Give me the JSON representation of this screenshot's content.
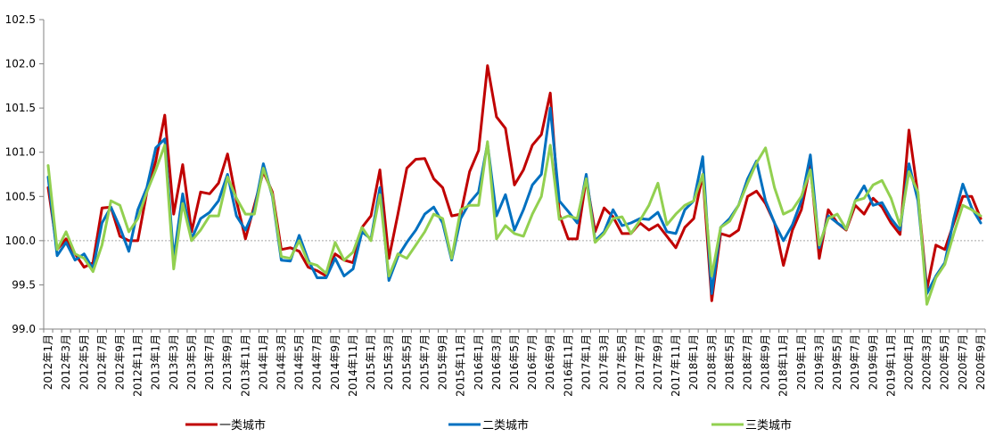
{
  "chart_data": {
    "type": "line",
    "title": "",
    "xlabel": "",
    "ylabel": "",
    "ylim": [
      99.0,
      102.5
    ],
    "yticks": [
      "99.0",
      "99.5",
      "100.0",
      "100.5",
      "101.0",
      "101.5",
      "102.0",
      "102.5"
    ],
    "ytick_values": [
      99.0,
      99.5,
      100.0,
      100.5,
      101.0,
      101.5,
      102.0,
      102.5
    ],
    "reference_line": 100.0,
    "grid": false,
    "legend_position": "bottom",
    "x": [
      "2012年1月",
      "2012年2月",
      "2012年3月",
      "2012年4月",
      "2012年5月",
      "2012年6月",
      "2012年7月",
      "2012年8月",
      "2012年9月",
      "2012年10月",
      "2012年11月",
      "2012年12月",
      "2013年1月",
      "2013年2月",
      "2013年3月",
      "2013年4月",
      "2013年5月",
      "2013年6月",
      "2013年7月",
      "2013年8月",
      "2013年9月",
      "2013年10月",
      "2013年11月",
      "2013年12月",
      "2014年1月",
      "2014年2月",
      "2014年3月",
      "2014年4月",
      "2014年5月",
      "2014年6月",
      "2014年7月",
      "2014年8月",
      "2014年9月",
      "2014年10月",
      "2014年11月",
      "2014年12月",
      "2015年1月",
      "2015年2月",
      "2015年3月",
      "2015年4月",
      "2015年5月",
      "2015年6月",
      "2015年7月",
      "2015年8月",
      "2015年9月",
      "2015年10月",
      "2015年11月",
      "2015年12月",
      "2016年1月",
      "2016年2月",
      "2016年3月",
      "2016年4月",
      "2016年5月",
      "2016年6月",
      "2016年7月",
      "2016年8月",
      "2016年9月",
      "2016年10月",
      "2016年11月",
      "2016年12月",
      "2017年1月",
      "2017年2月",
      "2017年3月",
      "2017年4月",
      "2017年5月",
      "2017年6月",
      "2017年7月",
      "2017年8月",
      "2017年9月",
      "2017年10月",
      "2017年11月",
      "2017年12月",
      "2018年1月",
      "2018年2月",
      "2018年3月",
      "2018年4月",
      "2018年5月",
      "2018年6月",
      "2018年7月",
      "2018年8月",
      "2018年9月",
      "2018年10月",
      "2018年11月",
      "2018年12月",
      "2019年1月",
      "2019年2月",
      "2019年3月",
      "2019年4月",
      "2019年5月",
      "2019年6月",
      "2019年7月",
      "2019年8月",
      "2019年9月",
      "2019年10月",
      "2019年11月",
      "2019年12月",
      "2020年1月",
      "2020年2月",
      "2020年3月",
      "2020年4月",
      "2020年5月",
      "2020年6月",
      "2020年7月",
      "2020年8月",
      "2020年9月"
    ],
    "x_tick_labels": [
      "2012年1月",
      "2012年3月",
      "2012年5月",
      "2012年7月",
      "2012年9月",
      "2012年11月",
      "2013年1月",
      "2013年3月",
      "2013年5月",
      "2013年7月",
      "2013年9月",
      "2013年11月",
      "2014年1月",
      "2014年3月",
      "2014年5月",
      "2014年7月",
      "2014年9月",
      "2014年11月",
      "2015年1月",
      "2015年3月",
      "2015年5月",
      "2015年7月",
      "2015年9月",
      "2015年11月",
      "2016年1月",
      "2016年3月",
      "2016年5月",
      "2016年7月",
      "2016年9月",
      "2016年11月",
      "2017年1月",
      "2017年3月",
      "2017年5月",
      "2017年7月",
      "2017年9月",
      "2017年11月",
      "2018年1月",
      "2018年3月",
      "2018年5月",
      "2018年7月",
      "2018年9月",
      "2018年11月",
      "2019年1月",
      "2019年3月",
      "2019年5月",
      "2019年7月",
      "2019年9月",
      "2019年11月",
      "2020年1月",
      "2020年3月",
      "2020年5月",
      "2020年7月",
      "2020年9月"
    ],
    "series": [
      {
        "name": "一类城市",
        "color": "#c00000",
        "values": [
          100.6,
          99.9,
          100.02,
          99.85,
          99.7,
          99.75,
          100.37,
          100.38,
          100.05,
          100.0,
          100.0,
          100.55,
          100.9,
          101.42,
          100.3,
          100.86,
          100.1,
          100.55,
          100.53,
          100.65,
          100.98,
          100.45,
          100.02,
          100.4,
          100.78,
          100.55,
          99.9,
          99.92,
          99.88,
          99.7,
          99.66,
          99.6,
          99.85,
          99.78,
          99.75,
          100.15,
          100.28,
          100.8,
          99.8,
          100.3,
          100.82,
          100.92,
          100.93,
          100.7,
          100.6,
          100.28,
          100.3,
          100.78,
          101.02,
          101.98,
          101.4,
          101.27,
          100.63,
          100.8,
          101.08,
          101.2,
          101.67,
          100.3,
          100.02,
          100.02,
          100.7,
          100.1,
          100.37,
          100.27,
          100.08,
          100.08,
          100.2,
          100.12,
          100.18,
          100.05,
          99.92,
          100.15,
          100.25,
          100.75,
          99.32,
          100.08,
          100.05,
          100.12,
          100.5,
          100.56,
          100.42,
          100.2,
          99.72,
          100.12,
          100.35,
          100.85,
          99.8,
          100.35,
          100.2,
          100.12,
          100.4,
          100.3,
          100.48,
          100.38,
          100.2,
          100.07,
          101.25,
          100.52,
          99.45,
          99.95,
          99.9,
          100.2,
          100.5,
          100.5,
          100.25
        ]
      },
      {
        "name": "二类城市",
        "color": "#0070c0",
        "values": [
          100.72,
          99.83,
          99.98,
          99.78,
          99.85,
          99.68,
          100.2,
          100.38,
          100.15,
          99.88,
          100.35,
          100.6,
          101.05,
          101.15,
          99.8,
          100.53,
          100.02,
          100.25,
          100.32,
          100.45,
          100.75,
          100.28,
          100.12,
          100.35,
          100.87,
          100.5,
          99.78,
          99.77,
          100.06,
          99.78,
          99.58,
          99.58,
          99.8,
          99.6,
          99.68,
          100.1,
          100.02,
          100.6,
          99.55,
          99.82,
          99.98,
          100.12,
          100.3,
          100.38,
          100.2,
          99.78,
          100.25,
          100.43,
          100.55,
          101.1,
          100.28,
          100.52,
          100.12,
          100.35,
          100.63,
          100.75,
          101.5,
          100.45,
          100.33,
          100.2,
          100.75,
          100.0,
          100.1,
          100.35,
          100.17,
          100.2,
          100.25,
          100.24,
          100.32,
          100.1,
          100.08,
          100.35,
          100.45,
          100.95,
          99.4,
          100.15,
          100.25,
          100.4,
          100.7,
          100.9,
          100.45,
          100.2,
          100.0,
          100.18,
          100.45,
          100.97,
          99.92,
          100.28,
          100.2,
          100.13,
          100.45,
          100.62,
          100.4,
          100.43,
          100.25,
          100.12,
          100.87,
          100.45,
          99.4,
          99.6,
          99.75,
          100.25,
          100.64,
          100.37,
          100.2
        ]
      },
      {
        "name": "三类城市",
        "color": "#92d050",
        "values": [
          100.85,
          99.9,
          100.1,
          99.85,
          99.8,
          99.65,
          99.95,
          100.45,
          100.4,
          100.1,
          100.25,
          100.55,
          100.8,
          101.08,
          99.68,
          100.42,
          100.0,
          100.12,
          100.28,
          100.28,
          100.72,
          100.48,
          100.3,
          100.3,
          100.82,
          100.52,
          99.82,
          99.8,
          100.0,
          99.75,
          99.72,
          99.63,
          99.98,
          99.78,
          99.87,
          100.15,
          100.0,
          100.52,
          99.6,
          99.85,
          99.8,
          99.95,
          100.1,
          100.3,
          100.25,
          99.8,
          100.35,
          100.4,
          100.4,
          101.12,
          100.02,
          100.17,
          100.08,
          100.05,
          100.3,
          100.5,
          101.08,
          100.24,
          100.28,
          100.25,
          100.7,
          99.98,
          100.08,
          100.25,
          100.27,
          100.08,
          100.23,
          100.4,
          100.65,
          100.18,
          100.3,
          100.4,
          100.45,
          100.75,
          99.6,
          100.15,
          100.22,
          100.4,
          100.65,
          100.88,
          101.05,
          100.6,
          100.3,
          100.35,
          100.5,
          100.8,
          99.95,
          100.25,
          100.3,
          100.13,
          100.45,
          100.48,
          100.63,
          100.68,
          100.48,
          100.17,
          100.78,
          100.55,
          99.28,
          99.58,
          99.73,
          100.08,
          100.4,
          100.35,
          100.28
        ]
      }
    ]
  }
}
